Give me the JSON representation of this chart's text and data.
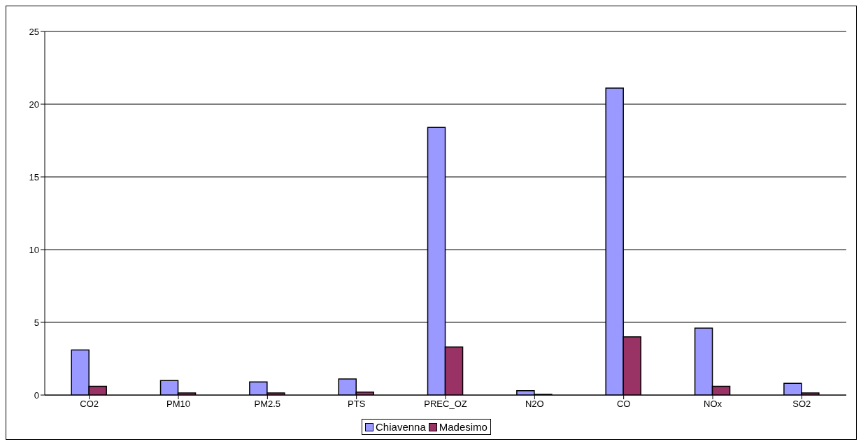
{
  "chart_data": {
    "type": "bar",
    "categories": [
      "CO2",
      "PM10",
      "PM2.5",
      "PTS",
      "PREC_OZ",
      "N2O",
      "CO",
      "NOx",
      "SO2"
    ],
    "series": [
      {
        "name": "Chiavenna",
        "color": "#9999ff",
        "values": [
          3.1,
          1.0,
          0.9,
          1.1,
          18.4,
          0.3,
          21.1,
          4.6,
          0.8
        ]
      },
      {
        "name": "Madesimo",
        "color": "#993366",
        "values": [
          0.6,
          0.15,
          0.15,
          0.2,
          3.3,
          0.05,
          4.0,
          0.6,
          0.15
        ]
      }
    ],
    "ylim": [
      0,
      25
    ],
    "yticks": [
      0,
      5,
      10,
      15,
      20,
      25
    ],
    "grid": "y",
    "legend": "bottom"
  }
}
